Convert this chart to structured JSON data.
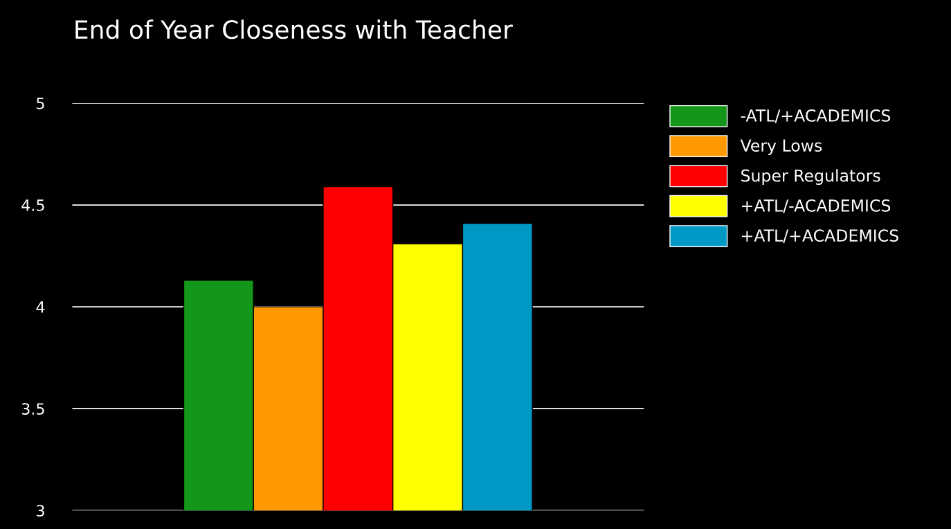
{
  "chart_data": {
    "type": "bar",
    "title": "End of Year Closeness with Teacher",
    "categories": [
      null
    ],
    "series": [
      {
        "name": "-ATL/+ACADEMICS",
        "color": "#13971a",
        "values": [
          4.13
        ]
      },
      {
        "name": "Very Lows",
        "color": "#ff9900",
        "values": [
          4.0
        ]
      },
      {
        "name": "Super Regulators",
        "color": "#ff0000",
        "values": [
          4.59
        ]
      },
      {
        "name": "+ATL/-ACADEMICS",
        "color": "#ffff00",
        "values": [
          4.31
        ]
      },
      {
        "name": "+ATL/+ACADEMICS",
        "color": "#0099c6",
        "values": [
          4.41
        ]
      }
    ],
    "ylim": [
      3,
      5
    ],
    "yticks": [
      3,
      3.5,
      4,
      4.5,
      5
    ],
    "grid": "y",
    "legend": "right"
  }
}
